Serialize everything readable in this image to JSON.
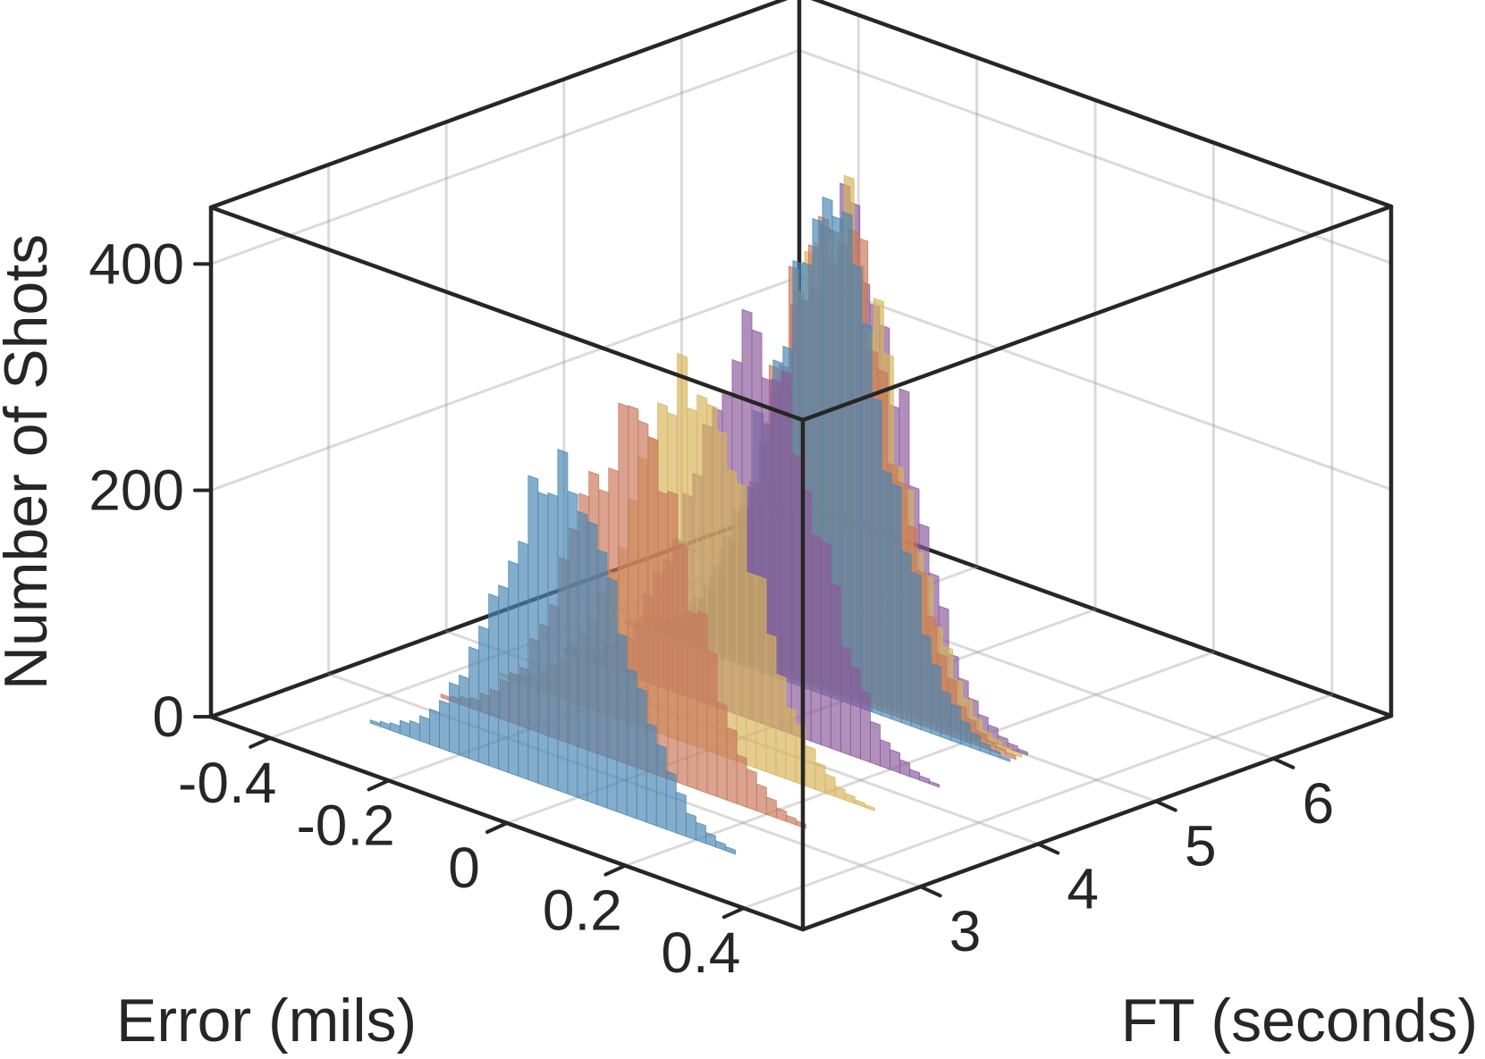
{
  "chart_data": {
    "type": "3d-histogram",
    "xlabel": "Error (mils)",
    "ylabel": "FT (seconds)",
    "zlabel": "Number of Shots",
    "xlim": [
      -0.5,
      0.5
    ],
    "ylim": [
      2,
      7
    ],
    "zlim": [
      0,
      450
    ],
    "xticks": [
      -0.4,
      -0.2,
      0,
      0.2,
      0.4
    ],
    "xtick_labels": [
      "-0.4",
      "-0.2",
      "0",
      "0.2",
      "0.4"
    ],
    "yticks": [
      3,
      4,
      5,
      6
    ],
    "ytick_labels": [
      "3",
      "4",
      "5",
      "6"
    ],
    "zticks": [
      0,
      200,
      400
    ],
    "ztick_labels": [
      "0",
      "200",
      "400"
    ],
    "grid": true,
    "colors": [
      "#4a86b4",
      "#c8785a",
      "#d7b45a",
      "#8c5a9b",
      "#4a86b4",
      "#c8785a",
      "#d7b45a",
      "#8c5a9b"
    ],
    "series": [
      {
        "ft": 2.6,
        "center": -0.02,
        "spread": 0.1,
        "peak": 295,
        "color_index": 0
      },
      {
        "ft": 3.2,
        "center": -0.02,
        "spread": 0.1,
        "peak": 290,
        "color_index": 1
      },
      {
        "ft": 3.7,
        "center": -0.02,
        "spread": 0.1,
        "peak": 320,
        "color_index": 2
      },
      {
        "ft": 4.25,
        "center": -0.02,
        "spread": 0.1,
        "peak": 345,
        "color_index": 3
      },
      {
        "ft": 4.85,
        "center": -0.02,
        "spread": 0.1,
        "peak": 410,
        "color_index": 4
      },
      {
        "ft": 4.9,
        "center": -0.02,
        "spread": 0.1,
        "peak": 420,
        "color_index": 5
      },
      {
        "ft": 4.95,
        "center": -0.02,
        "spread": 0.1,
        "peak": 415,
        "color_index": 6
      },
      {
        "ft": 5.0,
        "center": -0.02,
        "spread": 0.1,
        "peak": 425,
        "color_index": 7
      }
    ]
  }
}
